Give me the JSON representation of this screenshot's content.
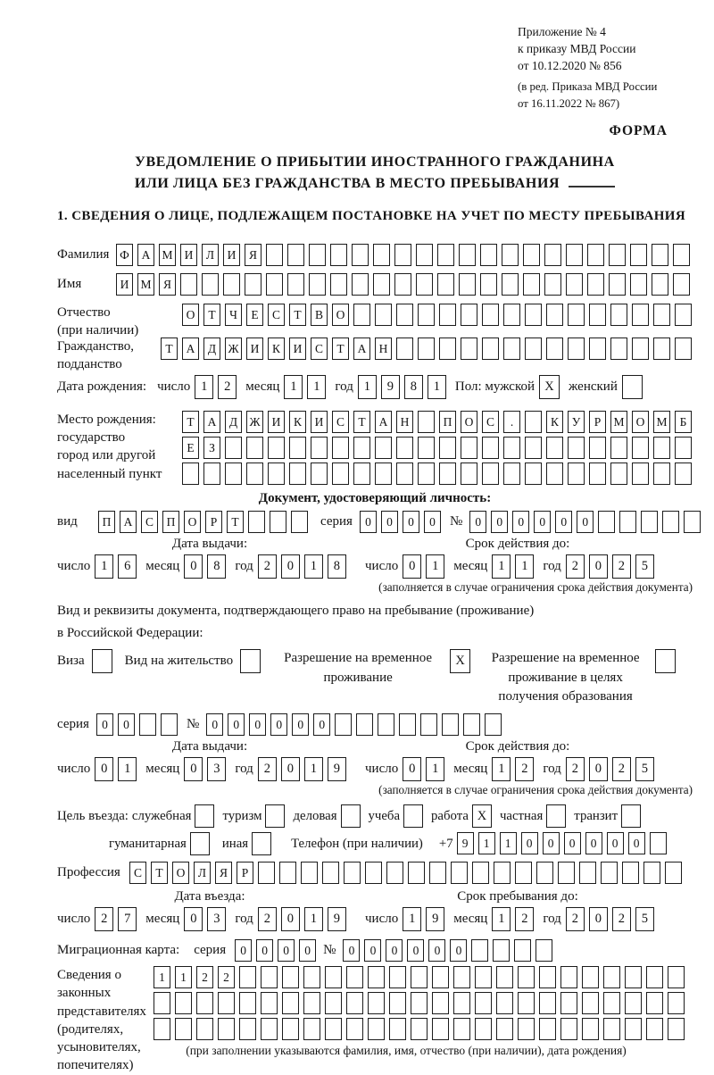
{
  "appendix": {
    "lines": [
      "Приложение № 4",
      "к приказу МВД России",
      "от 10.12.2020 № 856"
    ],
    "note_lines": [
      "(в ред. Приказа МВД России",
      "от 16.11.2022 № 867)"
    ],
    "form_label": "ФОРМА"
  },
  "title": {
    "line1": "УВЕДОМЛЕНИЕ О ПРИБЫТИИ ИНОСТРАННОГО ГРАЖДАНИНА",
    "line2": "ИЛИ ЛИЦА БЕЗ ГРАЖДАНСТВА В МЕСТО ПРЕБЫВАНИЯ"
  },
  "section1_heading": "1. СВЕДЕНИЯ О ЛИЦЕ, ПОДЛЕЖАЩЕМ ПОСТАНОВКЕ НА УЧЕТ ПО МЕСТУ ПРЕБЫВАНИЯ",
  "date_labels": {
    "day": "число",
    "month": "месяц",
    "year": "год"
  },
  "surname": {
    "label": "Фамилия",
    "cells": {
      "v": "ФАМИЛИЯ",
      "n": 27
    }
  },
  "firstname": {
    "label": "Имя",
    "cells": {
      "v": "ИМЯ",
      "n": 27
    }
  },
  "patronymic": {
    "label": "Отчество",
    "label2": "(при наличии)",
    "cells": {
      "v": "ОТЧЕСТВО",
      "n": 24
    }
  },
  "citizenship": {
    "label": "Гражданство,",
    "label2": "подданство",
    "cells": {
      "v": "ТАДЖИКИСТАН",
      "n": 25
    }
  },
  "birth_date": {
    "label": "Дата рождения:",
    "day": {
      "v": "12"
    },
    "month": {
      "v": "11"
    },
    "year": {
      "v": "1981"
    },
    "sex_label": "Пол: мужской",
    "male_mark": "X",
    "female_label": "женский",
    "female_mark": ""
  },
  "birth_place": {
    "label": "Место рождения:",
    "label_lines": [
      "государство",
      "город или другой",
      "населенный пункт"
    ],
    "row1": {
      "v": "ТАДЖИКИСТАН ПОС. КУРМОМБ",
      "n": 24
    },
    "row2": {
      "v": "ЕЗ",
      "n": 24
    },
    "row3": {
      "v": "",
      "n": 24
    }
  },
  "identity_doc": {
    "heading": "Документ, удостоверяющий личность:",
    "kind_label": "вид",
    "kind": {
      "v": "ПАСПОРТ",
      "n": 10
    },
    "series_label": "серия",
    "series": {
      "v": "0000",
      "n": 4
    },
    "number_label": "№",
    "number": {
      "v": "000000",
      "n": 11
    },
    "issue_heading": "Дата выдачи:",
    "expiry_heading": "Срок действия до:",
    "issue": {
      "day": {
        "v": "16"
      },
      "month": {
        "v": "08"
      },
      "year": {
        "v": "2018"
      }
    },
    "expiry": {
      "day": {
        "v": "01"
      },
      "month": {
        "v": "11"
      },
      "year": {
        "v": "2025"
      }
    },
    "note": "(заполняется в случае ограничения срока действия документа)"
  },
  "residence_doc": {
    "intro1": "Вид и реквизиты документа, подтверждающего право на пребывание (проживание)",
    "intro2": "в Российской Федерации:",
    "visa_label": "Виза",
    "visa_mark": "",
    "residence_permit_label": "Вид на жительство",
    "residence_permit_mark": "",
    "temp_residence_lines": [
      "Разрешение на временное",
      "проживание"
    ],
    "temp_residence_mark": "X",
    "temp_residence_edu_lines": [
      "Разрешение на временное",
      "проживание в целях",
      "получения образования"
    ],
    "temp_residence_edu_mark": "",
    "series_label": "серия",
    "series": {
      "v": "00",
      "n": 4
    },
    "number_label": "№",
    "number": {
      "v": "000000",
      "n": 14
    },
    "issue_heading": "Дата выдачи:",
    "expiry_heading": "Срок действия до:",
    "issue": {
      "day": {
        "v": "01"
      },
      "month": {
        "v": "03"
      },
      "year": {
        "v": "2019"
      }
    },
    "expiry": {
      "day": {
        "v": "01"
      },
      "month": {
        "v": "12"
      },
      "year": {
        "v": "2025"
      }
    },
    "note": "(заполняется в случае ограничения срока действия документа)"
  },
  "purpose": {
    "label": "Цель въезда:",
    "options": [
      {
        "label": "служебная",
        "mark": ""
      },
      {
        "label": "туризм",
        "mark": ""
      },
      {
        "label": "деловая",
        "mark": ""
      },
      {
        "label": "учеба",
        "mark": ""
      },
      {
        "label": "работа",
        "mark": "X"
      },
      {
        "label": "частная",
        "mark": ""
      },
      {
        "label": "транзит",
        "mark": ""
      },
      {
        "label": "гуманитарная",
        "mark": ""
      },
      {
        "label": "иная",
        "mark": ""
      }
    ],
    "phone_label": "Телефон (при наличии)",
    "phone_prefix": "+7",
    "phone": {
      "v": "911000000",
      "n": 10
    }
  },
  "profession": {
    "label": "Профессия",
    "cells": {
      "v": "СТОЛЯР",
      "n": 26
    }
  },
  "entry": {
    "entry_heading": "Дата въезда:",
    "stay_heading": "Срок пребывания до:",
    "entry_date": {
      "day": {
        "v": "27"
      },
      "month": {
        "v": "03"
      },
      "year": {
        "v": "2019"
      }
    },
    "stay_until": {
      "day": {
        "v": "19"
      },
      "month": {
        "v": "12"
      },
      "year": {
        "v": "2025"
      }
    }
  },
  "migration_card": {
    "label": "Миграционная карта:",
    "series_label": "серия",
    "series": {
      "v": "0000",
      "n": 4
    },
    "number_label": "№",
    "number": {
      "v": "000000",
      "n": 10
    }
  },
  "representatives": {
    "label_lines": [
      "Сведения о",
      "законных",
      "представителях",
      "(родителях,",
      "усыновителях,",
      "попечителях)"
    ],
    "row1": {
      "v": "1122",
      "n": 25
    },
    "row2": {
      "v": "",
      "n": 25
    },
    "row3": {
      "v": "",
      "n": 25
    },
    "note": "(при заполнении указываются фамилия, имя, отчество (при наличии), дата рождения)"
  }
}
